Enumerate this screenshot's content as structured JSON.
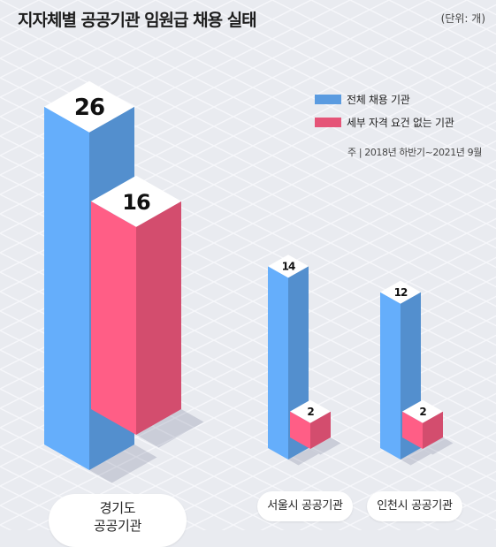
{
  "header": {
    "title": "지자체별 공공기관 임원급 채용 실태",
    "unit": "(단위: 개)"
  },
  "legend": {
    "items": [
      {
        "label": "전체 채용 기관",
        "color": "#5a9be0"
      },
      {
        "label": "세부 자격 요건 없는 기관",
        "color": "#e55478"
      }
    ]
  },
  "note": "주 | 2018년 하반기~2021년 9월",
  "categories": {
    "gyeonggi_line1": "경기도",
    "gyeonggi_line2": "공공기관",
    "seoul": "서울시 공공기관",
    "incheon": "인천시 공공기관"
  },
  "chart_data": {
    "type": "bar",
    "title": "지자체별 공공기관 임원급 채용 실태",
    "unit": "개",
    "categories": [
      "경기도 공공기관",
      "서울시 공공기관",
      "인천시 공공기관"
    ],
    "series": [
      {
        "name": "전체 채용 기관",
        "values": [
          26,
          14,
          12
        ],
        "color": "#5a9be0"
      },
      {
        "name": "세부 자격 요건 없는 기관",
        "values": [
          16,
          2,
          2
        ],
        "color": "#e55478"
      }
    ]
  }
}
